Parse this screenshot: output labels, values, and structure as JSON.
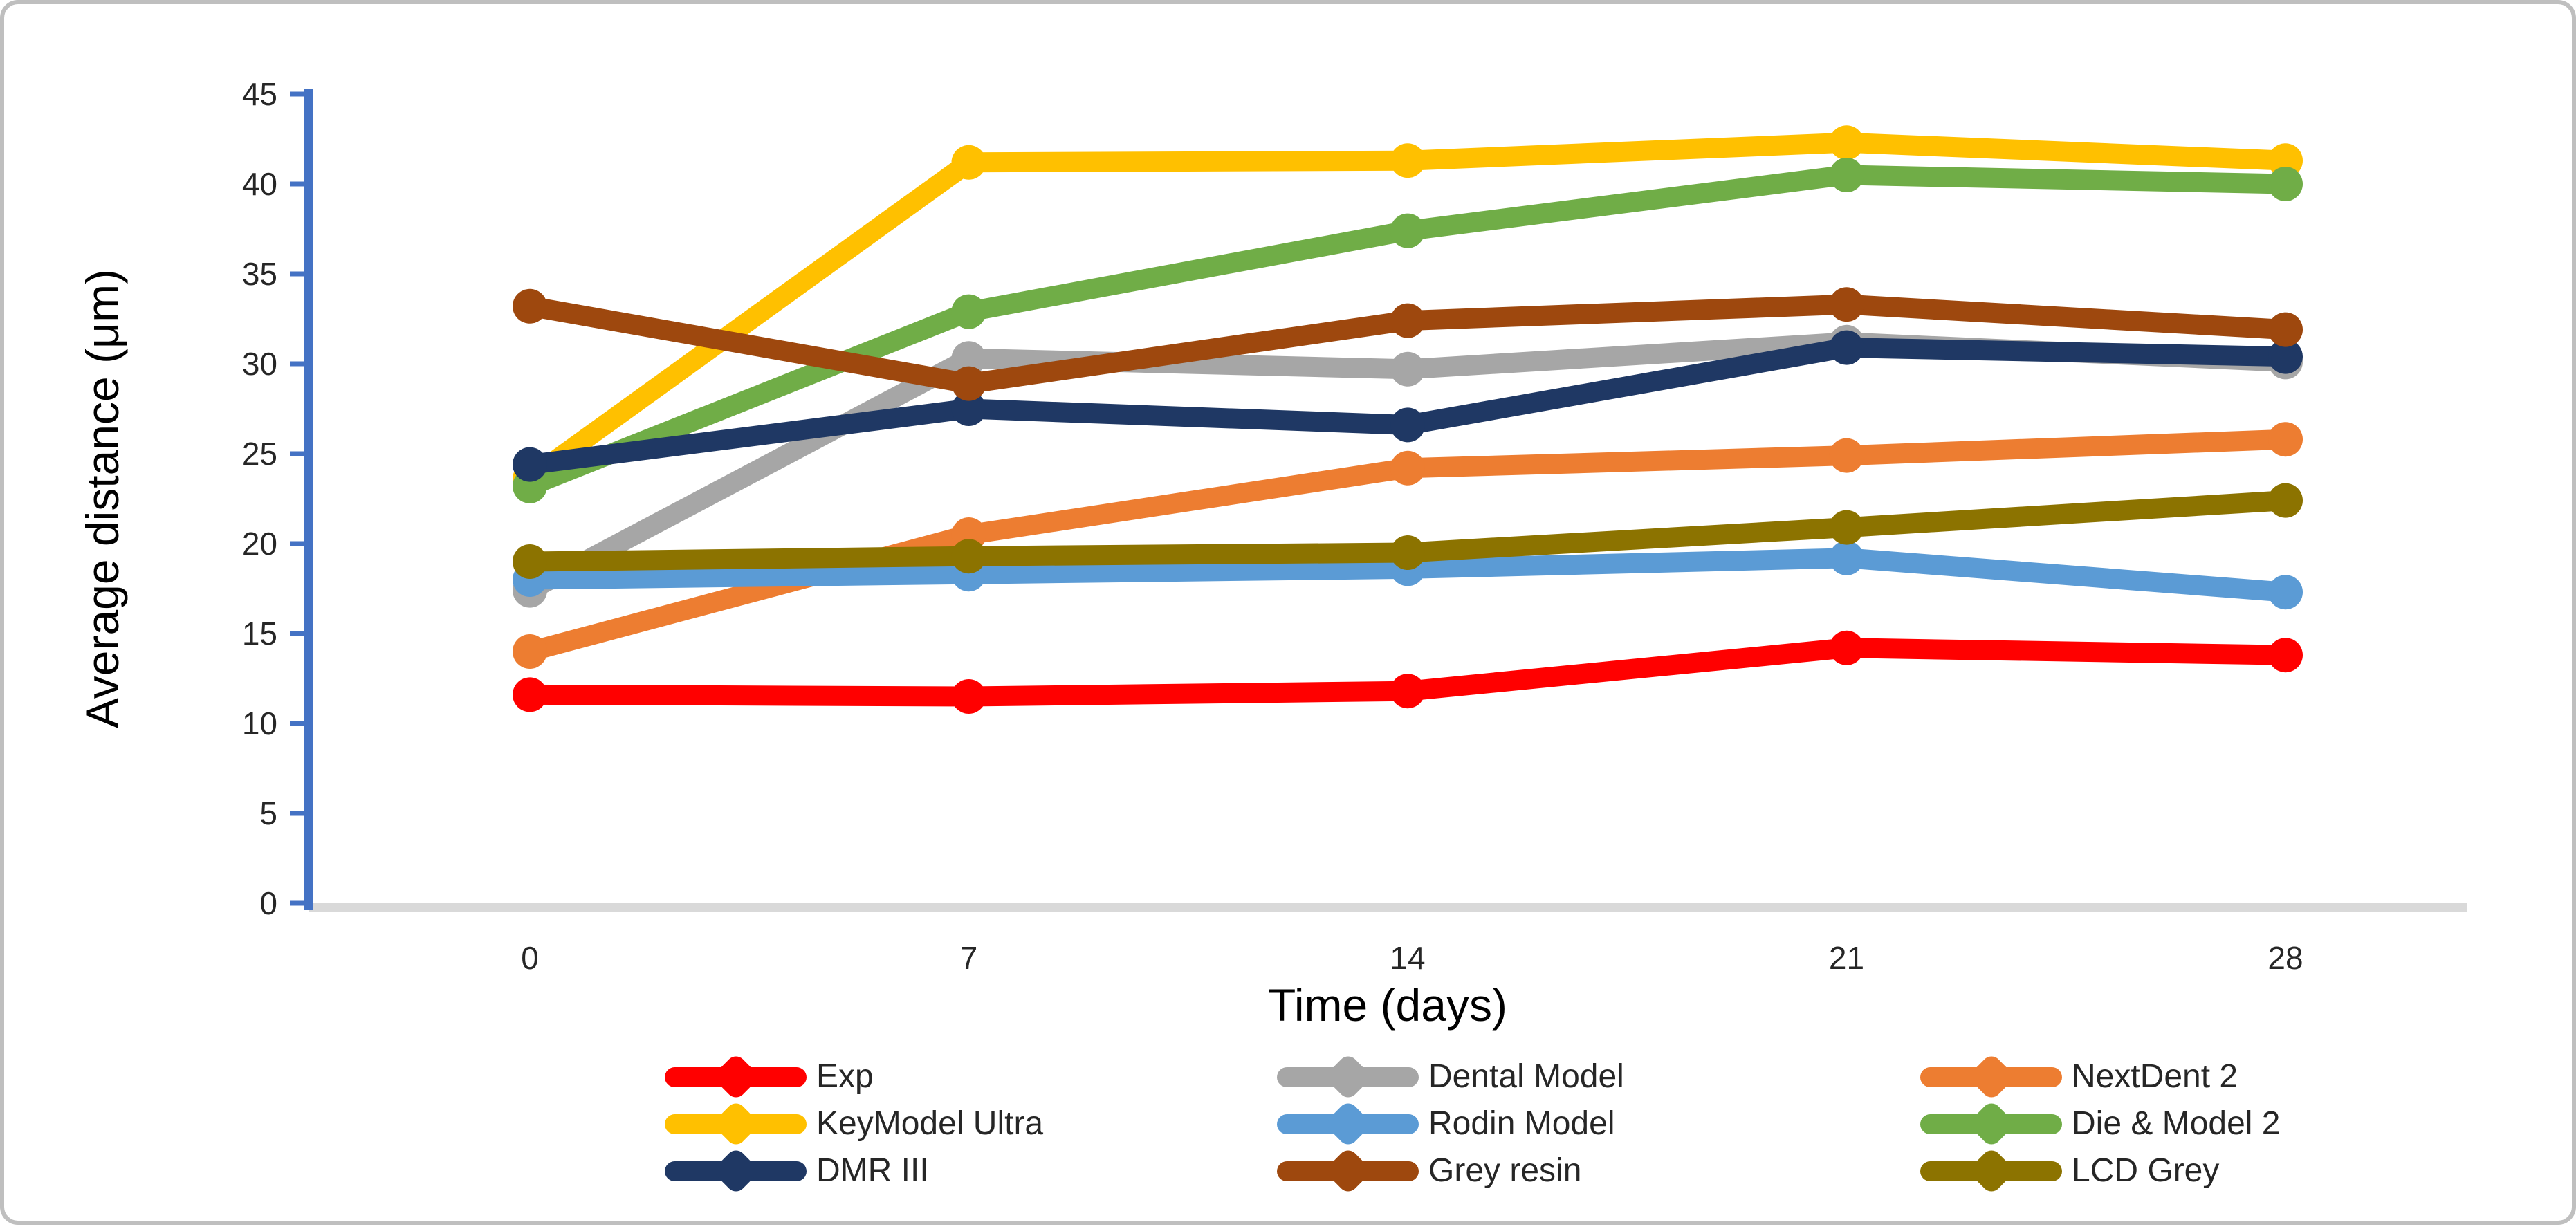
{
  "figure": {
    "background": "#FFFFFF",
    "border_color": "#BFBFBF"
  },
  "chart_data": {
    "type": "line",
    "title": "",
    "xlabel": "Time (days)",
    "ylabel": "Average distance (μm)",
    "x": [
      0,
      7,
      14,
      21,
      28
    ],
    "x_tick_labels": [
      "0",
      "7",
      "14",
      "21",
      "28"
    ],
    "y_ticks": [
      0,
      5,
      10,
      15,
      20,
      25,
      30,
      35,
      40,
      45
    ],
    "y_tick_labels": [
      "0",
      "5",
      "10",
      "15",
      "20",
      "25",
      "30",
      "35",
      "40",
      "45"
    ],
    "ylim": [
      0,
      45
    ],
    "grid": false,
    "legend_position": "bottom",
    "marker": "circle",
    "axis_colors": {
      "y_axis_line": "#4472C4",
      "x_axis_line": "#D9D9D9",
      "tick_label_color": "#262626"
    },
    "series": [
      {
        "name": "Exp",
        "color": "#FF0000",
        "values": [
          11.6,
          11.5,
          11.8,
          14.2,
          13.8
        ]
      },
      {
        "name": "Dental Model",
        "color": "#A6A6A6",
        "values": [
          17.4,
          30.3,
          29.7,
          31.2,
          30.1
        ]
      },
      {
        "name": "NextDent 2",
        "color": "#ED7D31",
        "values": [
          14.0,
          20.5,
          24.2,
          24.9,
          25.8
        ]
      },
      {
        "name": "KeyModel Ultra",
        "color": "#FFC000",
        "values": [
          23.6,
          41.2,
          41.3,
          42.3,
          41.3
        ]
      },
      {
        "name": "Rodin Model",
        "color": "#5B9BD5",
        "values": [
          18.0,
          18.3,
          18.6,
          19.2,
          17.3
        ]
      },
      {
        "name": "Die & Model 2",
        "color": "#70AD47",
        "values": [
          23.2,
          32.9,
          37.4,
          40.5,
          40.0
        ]
      },
      {
        "name": "DMR III",
        "color": "#1F3864",
        "values": [
          24.4,
          27.5,
          26.6,
          30.9,
          30.4
        ]
      },
      {
        "name": "Grey resin",
        "color": "#9E480E",
        "values": [
          33.2,
          28.9,
          32.4,
          33.3,
          31.9
        ]
      },
      {
        "name": "LCD Grey",
        "color": "#8C7300",
        "values": [
          19.0,
          19.3,
          19.5,
          20.9,
          22.4
        ]
      }
    ],
    "legend_rows": [
      [
        "Exp",
        "Dental Model",
        "NextDent 2"
      ],
      [
        "KeyModel Ultra",
        "Rodin Model",
        "Die & Model 2"
      ],
      [
        "DMR III",
        "Grey resin",
        "LCD Grey"
      ]
    ]
  }
}
